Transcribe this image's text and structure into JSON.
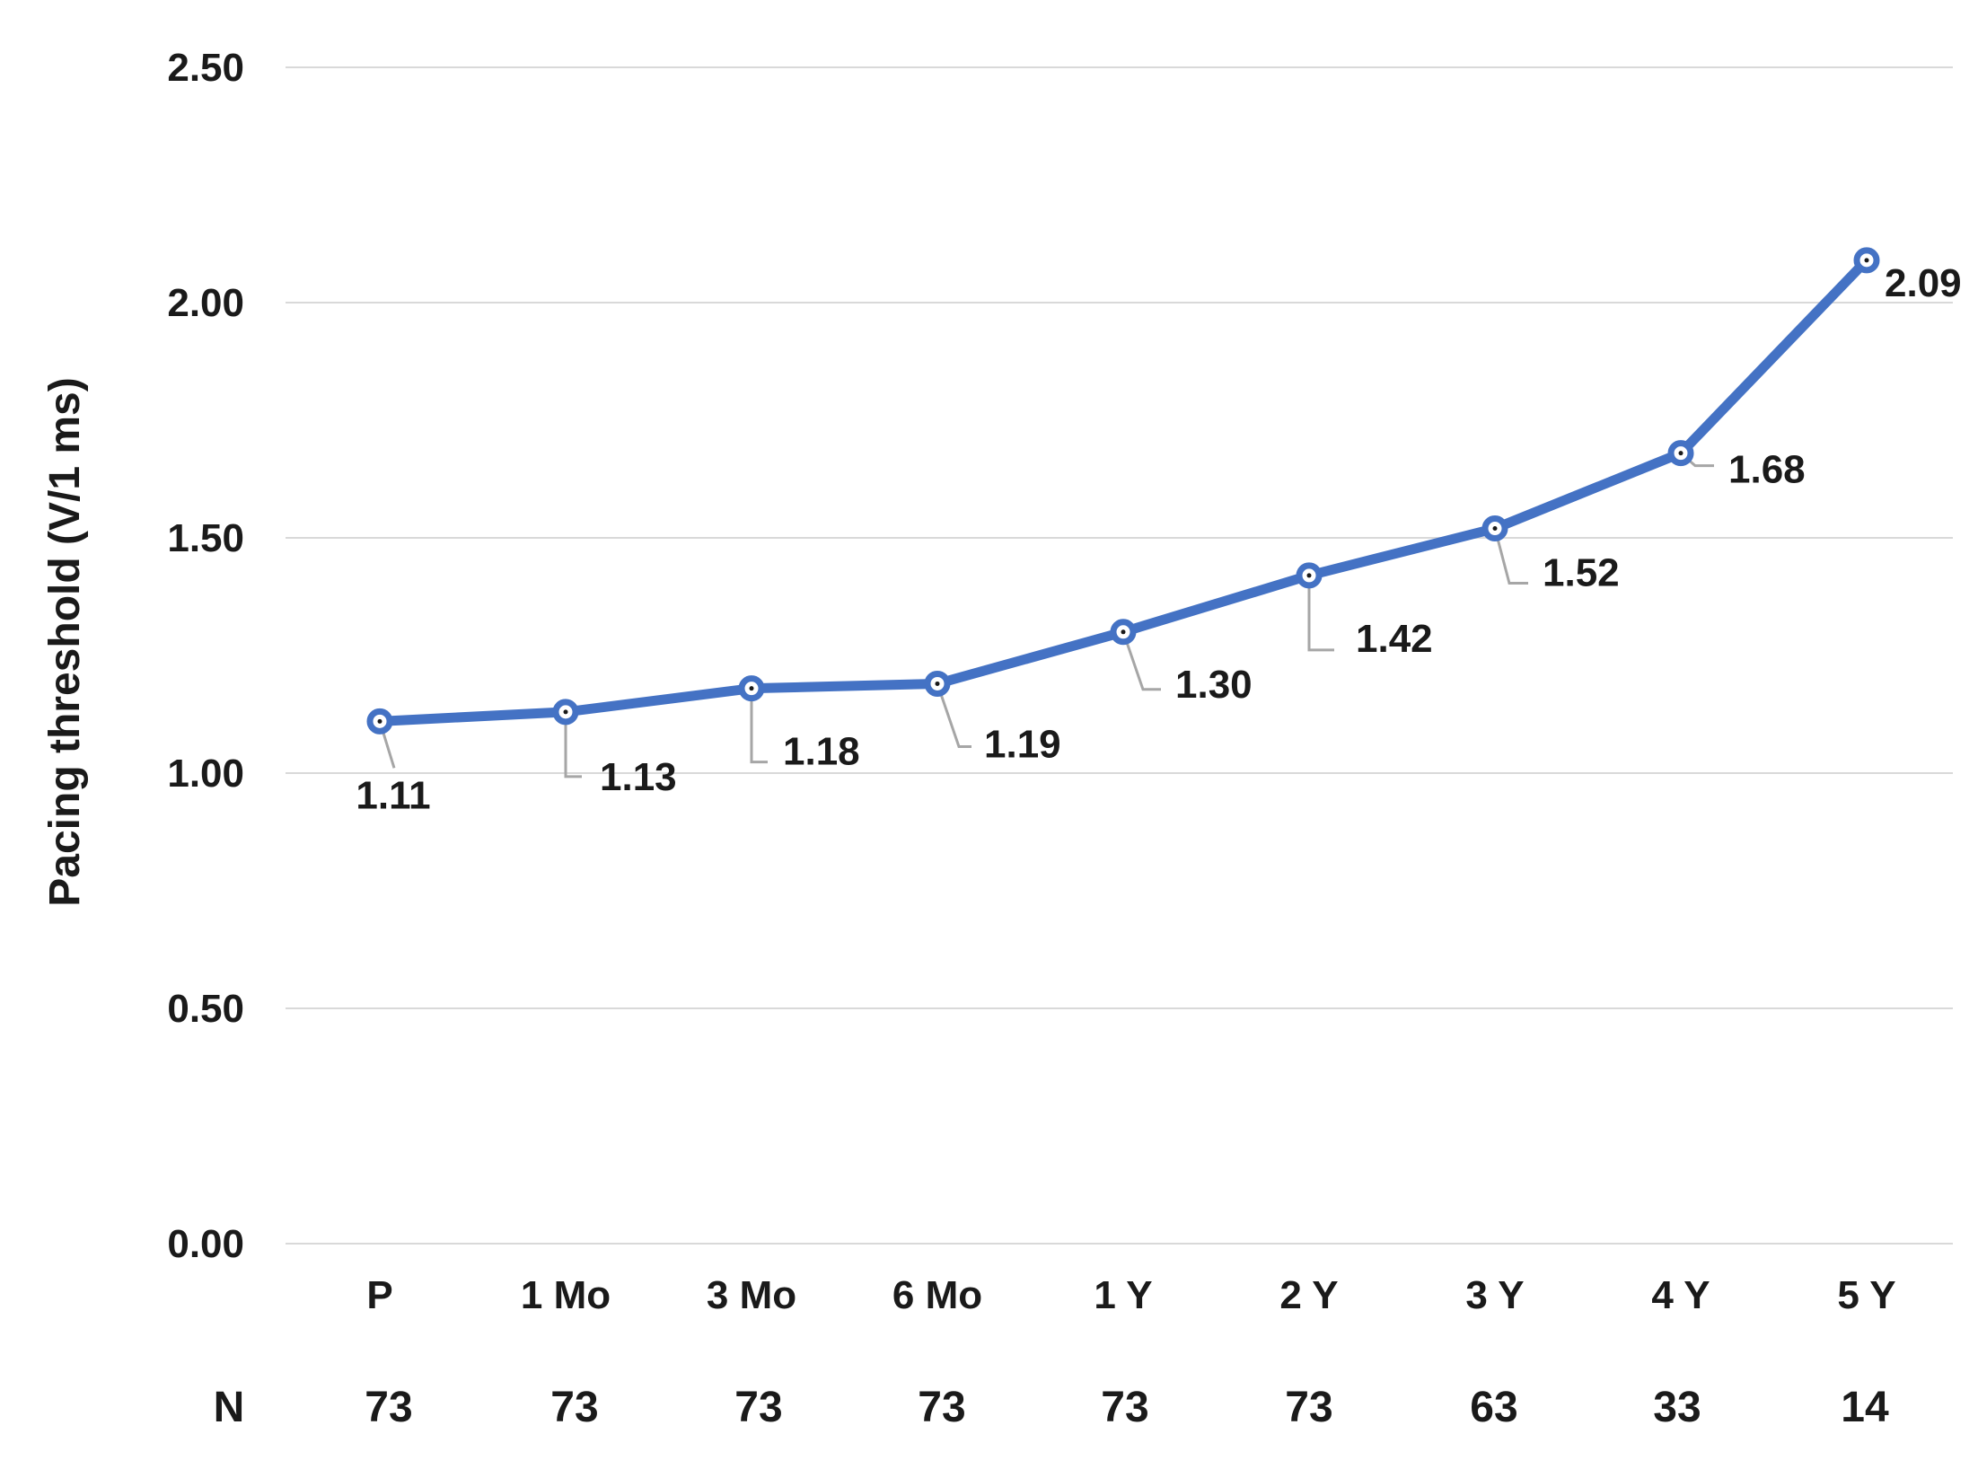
{
  "chart_data": {
    "type": "line",
    "categories": [
      "P",
      "1 Mo",
      "3 Mo",
      "6 Mo",
      "1 Y",
      "2 Y",
      "3 Y",
      "4 Y",
      "5 Y"
    ],
    "series": [
      {
        "values": [
          1.11,
          1.13,
          1.18,
          1.19,
          1.3,
          1.42,
          1.52,
          1.68,
          2.09
        ]
      }
    ],
    "data_labels": [
      "1.11",
      "1.13",
      "1.18",
      "1.19",
      "1.30",
      "1.42",
      "1.52",
      "1.68",
      "2.09"
    ],
    "ylabel": "Pacing threshold (V/1 ms)",
    "ylim": [
      0,
      2.5
    ],
    "yticks": [
      "0.00",
      "0.50",
      "1.00",
      "1.50",
      "2.00",
      "2.50"
    ],
    "grid": true,
    "series_color": "#4472c4",
    "n_row": {
      "label": "N",
      "values": [
        "73",
        "73",
        "73",
        "73",
        "73",
        "73",
        "63",
        "33",
        "14"
      ]
    }
  }
}
